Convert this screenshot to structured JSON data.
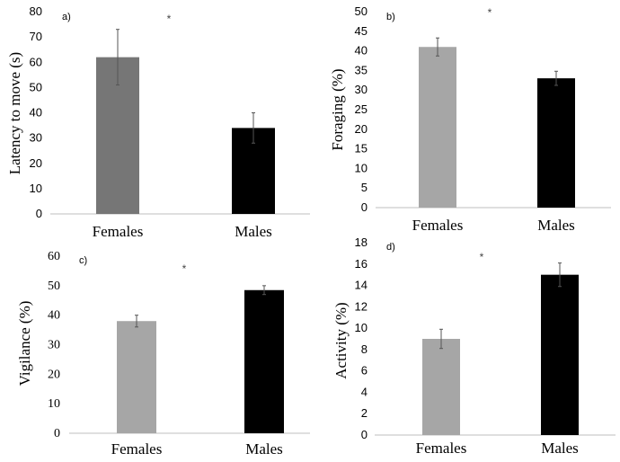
{
  "chart_data": [
    {
      "type": "bar",
      "panel_label": "a)",
      "annotation": "*",
      "categories": [
        "Females",
        "Males"
      ],
      "values": [
        62,
        34
      ],
      "errors": [
        11,
        6
      ],
      "colors": [
        "#767676",
        "#000000"
      ],
      "ylabel": "Latency to move (s)",
      "ylim": [
        0,
        80
      ],
      "yticks": [
        0,
        10,
        20,
        30,
        40,
        50,
        60,
        70,
        80
      ]
    },
    {
      "type": "bar",
      "panel_label": "b)",
      "annotation": "*",
      "categories": [
        "Females",
        "Males"
      ],
      "values": [
        41,
        33
      ],
      "errors": [
        2.3,
        1.8
      ],
      "colors": [
        "#a6a6a6",
        "#000000"
      ],
      "ylabel": "Foraging (%)",
      "ylim": [
        0,
        50
      ],
      "yticks": [
        0,
        5,
        10,
        15,
        20,
        25,
        30,
        35,
        40,
        45,
        50
      ]
    },
    {
      "type": "bar",
      "panel_label": "c)",
      "annotation": "*",
      "categories": [
        "Females",
        "Males"
      ],
      "values": [
        38,
        48.5
      ],
      "errors": [
        2,
        1.5
      ],
      "colors": [
        "#a6a6a6",
        "#000000"
      ],
      "ylabel": "Vigilance (%)",
      "ylim": [
        0,
        60
      ],
      "yticks": [
        0,
        10,
        20,
        30,
        40,
        50,
        60
      ]
    },
    {
      "type": "bar",
      "panel_label": "d)",
      "annotation": "*",
      "categories": [
        "Females",
        "Males"
      ],
      "values": [
        9,
        15
      ],
      "errors": [
        0.9,
        1.1
      ],
      "colors": [
        "#a6a6a6",
        "#000000"
      ],
      "ylabel": "Activity (%)",
      "ylim": [
        0,
        18
      ],
      "yticks": [
        0,
        2,
        4,
        6,
        8,
        10,
        12,
        14,
        16,
        18
      ]
    }
  ]
}
